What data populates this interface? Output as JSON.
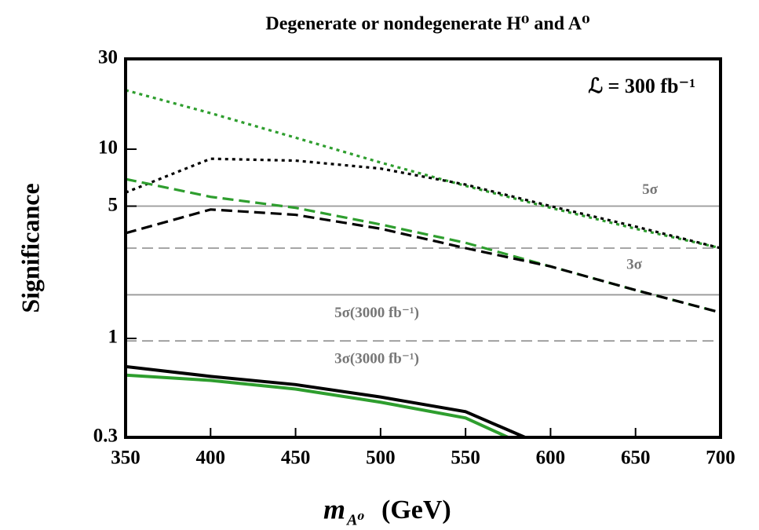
{
  "chart_data": {
    "type": "line",
    "title": "Degenerate or nondegenerate H⁰ and A⁰",
    "xlabel": {
      "symbol": "m",
      "subscript": "A⁰",
      "unit": "(GeV)"
    },
    "ylabel": "Significance",
    "annotation": "ℒ = 300 fb⁻¹",
    "log_y": true,
    "xlim": [
      350,
      700
    ],
    "ylim": [
      0.3,
      30
    ],
    "xticks": [
      350,
      400,
      450,
      500,
      550,
      600,
      650,
      700
    ],
    "yticks": [
      0.3,
      1,
      5,
      10,
      30
    ],
    "reference_lines": [
      {
        "value": 5,
        "label": "5σ",
        "style": "solid"
      },
      {
        "value": 3,
        "label": "3σ",
        "style": "dashed"
      },
      {
        "value": 1.7,
        "label": "5σ(3000 fb⁻¹)",
        "style": "solid"
      },
      {
        "value": 0.97,
        "label": "3σ(3000 fb⁻¹)",
        "style": "dashed"
      }
    ],
    "series": [
      {
        "color": "#2e9e2e",
        "dash": "dotted",
        "x": [
          350,
          400,
          450,
          500,
          550,
          600,
          650,
          700
        ],
        "values": [
          20.5,
          15.5,
          11.5,
          8.5,
          6.4,
          4.9,
          3.8,
          3.0
        ]
      },
      {
        "color": "#000000",
        "dash": "dotted",
        "x": [
          350,
          400,
          450,
          500,
          550,
          600,
          650,
          700
        ],
        "values": [
          5.9,
          8.9,
          8.7,
          7.9,
          6.5,
          5.0,
          3.9,
          3.0
        ]
      },
      {
        "color": "#2e9e2e",
        "dash": "dashed",
        "x": [
          350,
          400,
          450,
          500,
          550,
          600,
          650,
          700
        ],
        "values": [
          6.95,
          5.6,
          4.9,
          4.0,
          3.2,
          2.4,
          1.8,
          1.37
        ]
      },
      {
        "color": "#000000",
        "dash": "dashed",
        "x": [
          350,
          400,
          450,
          500,
          550,
          600,
          650,
          700
        ],
        "values": [
          3.6,
          4.8,
          4.5,
          3.8,
          3.0,
          2.4,
          1.8,
          1.37
        ]
      },
      {
        "color": "#000000",
        "dash": "solid",
        "x": [
          350,
          400,
          450,
          500,
          550,
          585
        ],
        "values": [
          0.71,
          0.63,
          0.57,
          0.49,
          0.41,
          0.3
        ]
      },
      {
        "color": "#2e9e2e",
        "dash": "solid",
        "x": [
          350,
          400,
          450,
          500,
          550,
          575
        ],
        "values": [
          0.64,
          0.6,
          0.54,
          0.46,
          0.38,
          0.3
        ]
      }
    ]
  }
}
